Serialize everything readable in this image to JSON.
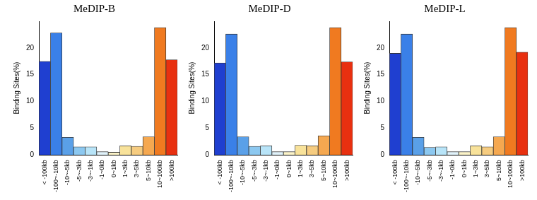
{
  "chart_data": [
    {
      "type": "bar",
      "title": "MeDIP-B",
      "y_label": "Binding Sites(%)",
      "categories": [
        "< -100kb",
        "-100~-10kb",
        "-10~-5kb",
        "-5~-3kb",
        "-3~-1kb",
        "-1~0kb",
        "0~1kb",
        "1~3kb",
        "3~5kb",
        "5~10kb",
        "10~100kb",
        ">100kb"
      ],
      "values": [
        17.5,
        22.8,
        3.3,
        1.5,
        1.5,
        0.6,
        0.5,
        1.7,
        1.6,
        3.4,
        23.8,
        17.8
      ],
      "colors": [
        "#1f3fd0",
        "#3a80e8",
        "#5aa0e8",
        "#8cc8f0",
        "#b8e4f8",
        "#e0f2fa",
        "#fbf3c8",
        "#f8e29a",
        "#f6cc80",
        "#f5a850",
        "#f07a20",
        "#e83010"
      ],
      "ylim": [
        0,
        25
      ],
      "yticks": [
        0,
        5,
        10,
        15,
        20
      ],
      "grid": false
    },
    {
      "type": "bar",
      "title": "MeDIP-D",
      "y_label": "Binding Sites(%)",
      "categories": [
        "< -100kb",
        "-100~-10kb",
        "-10~-5kb",
        "-5~-3kb",
        "-3~-1kb",
        "-1~0kb",
        "0~1kb",
        "1~3kb",
        "3~5kb",
        "5~10kb",
        "10~100kb",
        ">100kb"
      ],
      "values": [
        17.2,
        22.6,
        3.4,
        1.6,
        1.7,
        0.6,
        0.6,
        1.8,
        1.7,
        3.6,
        23.8,
        17.4
      ],
      "colors": [
        "#1f3fd0",
        "#3a80e8",
        "#5aa0e8",
        "#8cc8f0",
        "#b8e4f8",
        "#e0f2fa",
        "#fbf3c8",
        "#f8e29a",
        "#f6cc80",
        "#f5a850",
        "#f07a20",
        "#e83010"
      ],
      "ylim": [
        0,
        25
      ],
      "yticks": [
        0,
        5,
        10,
        15,
        20
      ],
      "grid": false
    },
    {
      "type": "bar",
      "title": "MeDIP-L",
      "y_label": "Binding Sites(%)",
      "categories": [
        "< -100kb",
        "-100~-10kb",
        "-10~-5kb",
        "-5~-3kb",
        "-3~-1kb",
        "-1~0kb",
        "0~1kb",
        "1~3kb",
        "3~5kb",
        "5~10kb",
        "10~100kb",
        ">100kb"
      ],
      "values": [
        19.0,
        22.6,
        3.3,
        1.4,
        1.5,
        0.6,
        0.6,
        1.7,
        1.5,
        3.4,
        23.8,
        19.2
      ],
      "colors": [
        "#1f3fd0",
        "#3a80e8",
        "#5aa0e8",
        "#8cc8f0",
        "#b8e4f8",
        "#e0f2fa",
        "#fbf3c8",
        "#f8e29a",
        "#f6cc80",
        "#f5a850",
        "#f07a20",
        "#e83010"
      ],
      "ylim": [
        0,
        25
      ],
      "yticks": [
        0,
        5,
        10,
        15,
        20
      ],
      "grid": false
    }
  ]
}
